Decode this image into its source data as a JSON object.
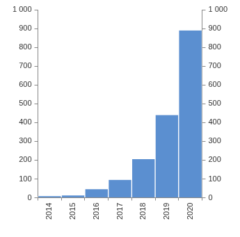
{
  "chart_data": {
    "type": "bar",
    "categories": [
      "2014",
      "2015",
      "2016",
      "2017",
      "2018",
      "2019",
      "2020"
    ],
    "values": [
      8,
      12,
      45,
      95,
      205,
      440,
      890
    ],
    "color": "#5b8fd0",
    "ylim": [
      0,
      1000
    ],
    "yticks": [
      0,
      100,
      200,
      300,
      400,
      500,
      600,
      700,
      800,
      900,
      {
        "value": 1000,
        "label": "1 000"
      }
    ],
    "y2lim": [
      0,
      1000
    ],
    "y2ticks": [
      0,
      100,
      200,
      300,
      400,
      500,
      600,
      700,
      800,
      900,
      {
        "value": 1000,
        "label": "1 000"
      }
    ],
    "grid": false
  }
}
